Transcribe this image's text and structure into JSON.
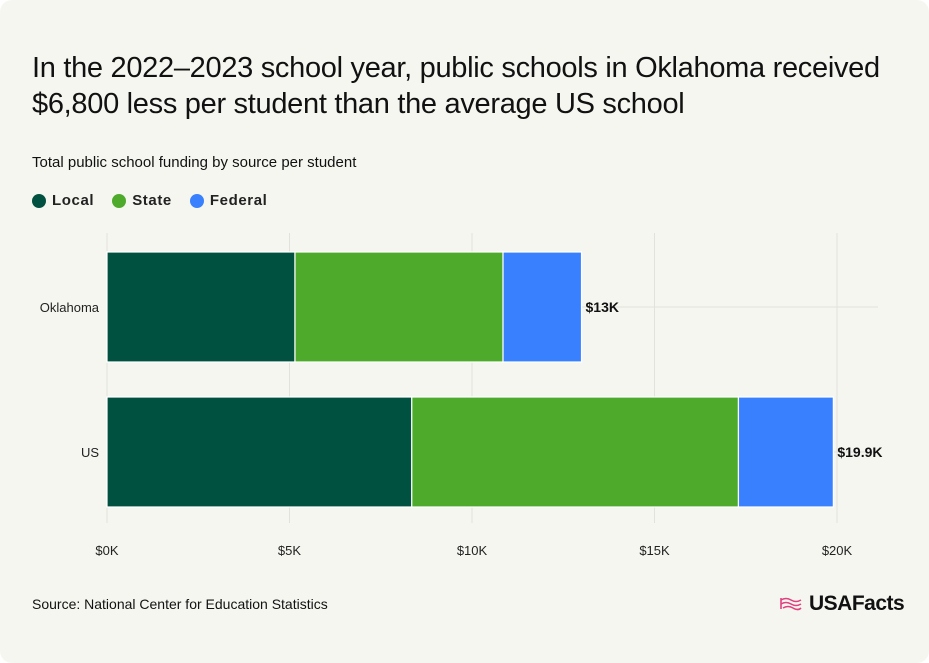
{
  "title": "In the 2022–2023 school year, public schools in Oklahoma received $6,800 less per student than the average US school",
  "subtitle": "Total public school funding by source per student",
  "source": "Source: National Center for Education Statistics",
  "brand": "USAFacts",
  "colors": {
    "local": "#00513f",
    "state": "#4eaa2a",
    "federal": "#3880fe",
    "grid": "#e2e2dc",
    "brand_flag": "#e0417f"
  },
  "chart_data": {
    "type": "bar",
    "orientation": "horizontal",
    "stacked": true,
    "title": "In the 2022–2023 school year, public schools in Oklahoma received $6,800 less per student than the average US school",
    "subtitle": "Total public school funding by source per student",
    "categories": [
      "Oklahoma",
      "US"
    ],
    "series": [
      {
        "name": "Local",
        "values": [
          5150,
          8350
        ]
      },
      {
        "name": "State",
        "values": [
          5700,
          8950
        ]
      },
      {
        "name": "Federal",
        "values": [
          2150,
          2600
        ]
      }
    ],
    "totals_labels": [
      "$13K",
      "$19.9K"
    ],
    "xlim": [
      0,
      20000
    ],
    "x_ticks": [
      0,
      5000,
      10000,
      15000,
      20000
    ],
    "x_tick_labels": [
      "$0K",
      "$5K",
      "$10K",
      "$15K",
      "$20K"
    ],
    "xlabel": "",
    "ylabel": "",
    "grid": true,
    "legend_position": "top-left"
  }
}
